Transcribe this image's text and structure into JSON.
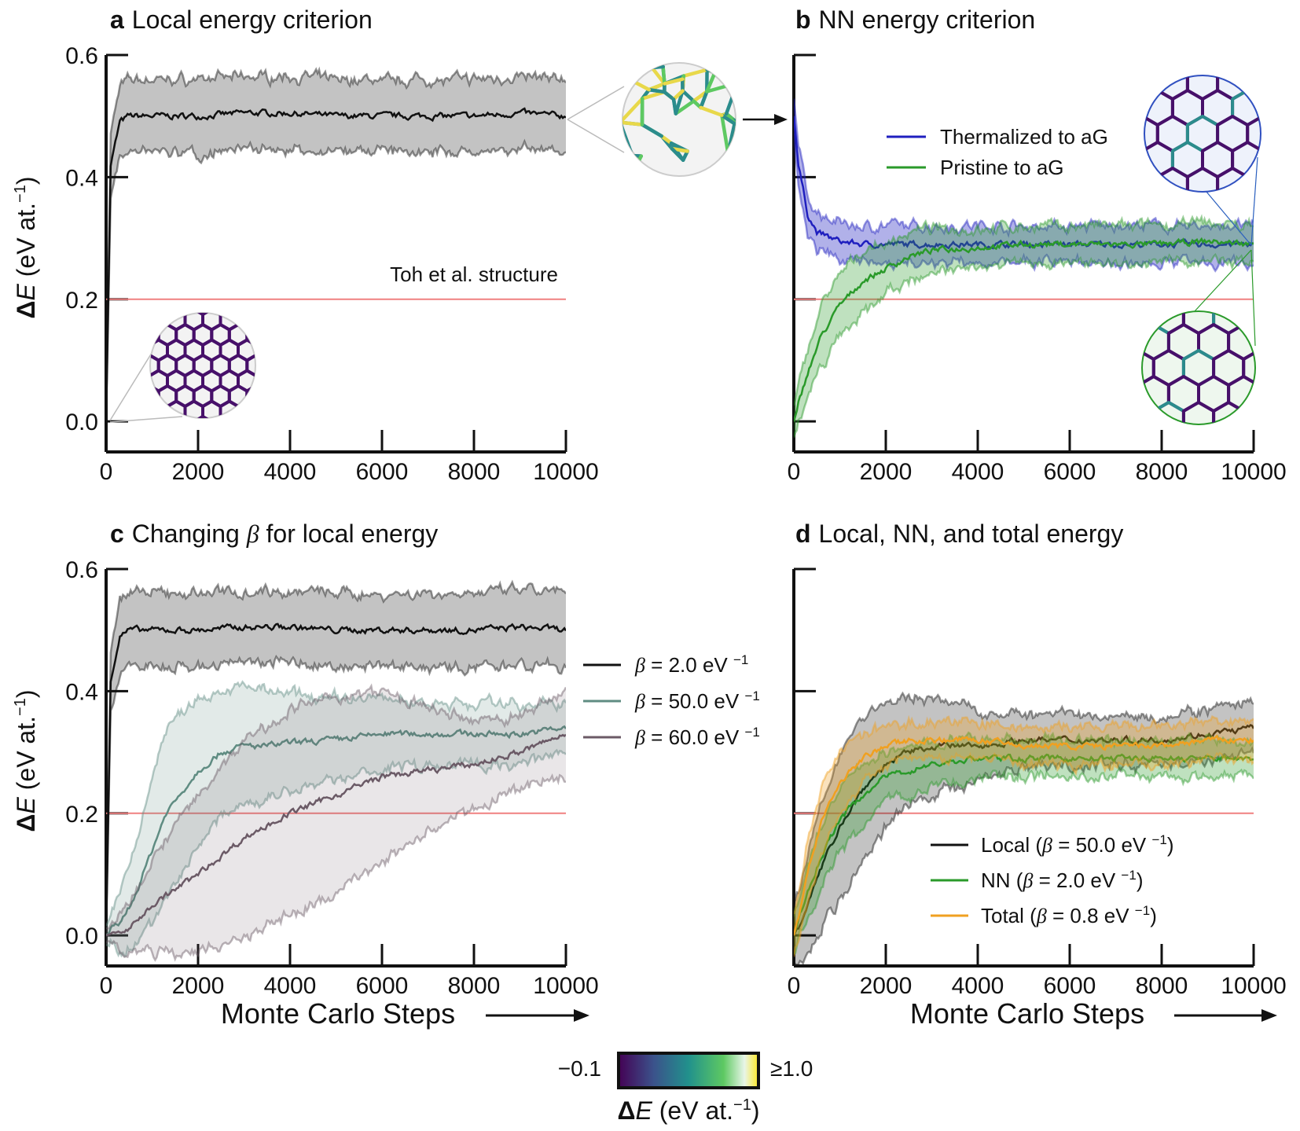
{
  "colors": {
    "local": "#111111",
    "thermalized": "#1f1fbf",
    "pristine": "#2a9a2a",
    "beta50": "#5f8c82",
    "beta60": "#6b5a66",
    "total": "#f0a020",
    "reference_line": "#f08080",
    "inset_purple": "#47106a",
    "inset_teal": "#2b8c8c",
    "inset_yellow": "#e8d84a"
  },
  "colorbar": {
    "min_label": "−0.1",
    "max_label": "≥1.0",
    "label_prefix": "Δ",
    "label_var": "E",
    "label_suffix": " (eV at.",
    "label_exp": "−1",
    "label_close": ")",
    "colormap": "viridis"
  },
  "panel_a": {
    "letter": "a",
    "title": "Local energy criterion",
    "annotation": "Toh et al. structure"
  },
  "panel_b": {
    "letter": "b",
    "title": "NN energy criterion"
  },
  "panel_c": {
    "letter": "c",
    "title_pre": "Changing ",
    "title_sym": "β",
    "title_post": " for local energy"
  },
  "panel_d": {
    "letter": "d",
    "title": "Local, NN, and total energy"
  },
  "axis_common": {
    "ylabel_delta": "Δ",
    "ylabel_var": "E",
    "ylabel_unit": " (eV at.",
    "ylabel_exp": "−1",
    "ylabel_close": ")",
    "xlabel": "Monte Carlo Steps"
  },
  "legend_b": [
    "Thermalized to aG",
    "Pristine to aG"
  ],
  "legend_c": [
    {
      "sym": "β",
      "text": " = 2.0 eV ",
      "exp": "−1"
    },
    {
      "sym": "β",
      "text": " = 50.0 eV ",
      "exp": "−1"
    },
    {
      "sym": "β",
      "text": " = 60.0 eV ",
      "exp": "−1"
    }
  ],
  "legend_d": [
    {
      "pre": "Local (",
      "sym": "β",
      "text": " = 50.0 eV ",
      "exp": "−1",
      "post": ")"
    },
    {
      "pre": "NN (",
      "sym": "β",
      "text": " = 2.0 eV ",
      "exp": "−1",
      "post": ")"
    },
    {
      "pre": "Total (",
      "sym": "β",
      "text": " = 0.8 eV ",
      "exp": "−1",
      "post": ")"
    }
  ],
  "chart_data": [
    {
      "panel": "a",
      "type": "line",
      "xlim": [
        0,
        10000
      ],
      "ylim": [
        -0.05,
        0.6
      ],
      "xticks": [
        0,
        2000,
        4000,
        6000,
        8000,
        10000
      ],
      "yticks": [
        "0.0",
        "0.2",
        "0.4",
        "0.6"
      ],
      "reference_line": 0.2,
      "series": [
        {
          "key": "local",
          "x": [
            0,
            100,
            300,
            500,
            1000,
            2000,
            3000,
            4000,
            5000,
            6000,
            7000,
            8000,
            9000,
            10000
          ],
          "mean": [
            0.0,
            0.42,
            0.49,
            0.5,
            0.5,
            0.5,
            0.505,
            0.505,
            0.5,
            0.5,
            0.5,
            0.5,
            0.505,
            0.5
          ],
          "std": [
            0.0,
            0.05,
            0.06,
            0.06,
            0.06,
            0.06,
            0.06,
            0.06,
            0.06,
            0.06,
            0.06,
            0.06,
            0.06,
            0.06
          ]
        }
      ]
    },
    {
      "panel": "b",
      "type": "line",
      "xlim": [
        0,
        10000
      ],
      "ylim": [
        -0.05,
        0.6
      ],
      "xticks": [
        0,
        2000,
        4000,
        6000,
        8000,
        10000
      ],
      "yticks": [
        "",
        "",
        "",
        ""
      ],
      "reference_line": 0.2,
      "series": [
        {
          "key": "thermalized",
          "name": "Thermalized to aG",
          "x": [
            0,
            100,
            300,
            500,
            800,
            1000,
            1500,
            2000,
            3000,
            4000,
            5000,
            6000,
            7000,
            8000,
            9000,
            10000
          ],
          "mean": [
            0.5,
            0.42,
            0.34,
            0.31,
            0.3,
            0.295,
            0.29,
            0.29,
            0.29,
            0.29,
            0.29,
            0.29,
            0.29,
            0.29,
            0.29,
            0.29
          ],
          "std": [
            0.03,
            0.03,
            0.03,
            0.03,
            0.03,
            0.03,
            0.03,
            0.03,
            0.03,
            0.03,
            0.03,
            0.03,
            0.03,
            0.03,
            0.03,
            0.03
          ]
        },
        {
          "key": "pristine",
          "name": "Pristine to aG",
          "x": [
            0,
            300,
            600,
            1000,
            1500,
            2000,
            2500,
            3000,
            4000,
            5000,
            6000,
            7000,
            8000,
            9000,
            10000
          ],
          "mean": [
            0.0,
            0.08,
            0.14,
            0.19,
            0.23,
            0.25,
            0.27,
            0.28,
            0.285,
            0.29,
            0.29,
            0.29,
            0.29,
            0.295,
            0.29
          ],
          "std": [
            0.03,
            0.04,
            0.05,
            0.05,
            0.05,
            0.04,
            0.04,
            0.035,
            0.03,
            0.03,
            0.03,
            0.03,
            0.03,
            0.03,
            0.03
          ]
        }
      ]
    },
    {
      "panel": "c",
      "type": "line",
      "xlim": [
        0,
        10000
      ],
      "ylim": [
        -0.05,
        0.6
      ],
      "xticks": [
        0,
        2000,
        4000,
        6000,
        8000,
        10000
      ],
      "yticks": [
        "0.0",
        "0.2",
        "0.4",
        "0.6"
      ],
      "reference_line": 0.2,
      "series": [
        {
          "key": "local",
          "name": "β = 2.0 eV −1",
          "x": [
            0,
            100,
            300,
            500,
            1000,
            2000,
            3000,
            4000,
            5000,
            6000,
            7000,
            8000,
            9000,
            10000
          ],
          "mean": [
            0.0,
            0.42,
            0.49,
            0.5,
            0.5,
            0.5,
            0.505,
            0.505,
            0.5,
            0.5,
            0.5,
            0.5,
            0.505,
            0.5
          ],
          "std": [
            0.0,
            0.05,
            0.06,
            0.06,
            0.06,
            0.06,
            0.06,
            0.06,
            0.06,
            0.06,
            0.06,
            0.06,
            0.06,
            0.06
          ]
        },
        {
          "key": "beta50",
          "name": "β = 50.0 eV −1",
          "x": [
            0,
            300,
            600,
            1000,
            1300,
            1700,
            2000,
            2500,
            3000,
            3500,
            4000,
            5000,
            6000,
            7000,
            8000,
            9000,
            10000
          ],
          "mean": [
            0.0,
            0.02,
            0.06,
            0.14,
            0.2,
            0.24,
            0.27,
            0.3,
            0.31,
            0.31,
            0.315,
            0.32,
            0.33,
            0.33,
            0.33,
            0.33,
            0.34
          ],
          "std": [
            0.01,
            0.05,
            0.08,
            0.12,
            0.14,
            0.13,
            0.12,
            0.1,
            0.1,
            0.09,
            0.08,
            0.07,
            0.06,
            0.05,
            0.05,
            0.05,
            0.04
          ]
        },
        {
          "key": "beta60",
          "name": "β = 60.0 eV −1",
          "x": [
            0,
            500,
            1000,
            2000,
            3000,
            4000,
            5000,
            6000,
            7000,
            8000,
            9000,
            10000
          ],
          "mean": [
            0.0,
            0.01,
            0.05,
            0.1,
            0.16,
            0.2,
            0.23,
            0.26,
            0.27,
            0.28,
            0.3,
            0.33
          ],
          "std": [
            0.01,
            0.04,
            0.08,
            0.13,
            0.16,
            0.17,
            0.16,
            0.14,
            0.1,
            0.07,
            0.06,
            0.07
          ]
        }
      ]
    },
    {
      "panel": "d",
      "type": "line",
      "xlim": [
        0,
        10000
      ],
      "ylim": [
        -0.05,
        0.6
      ],
      "xticks": [
        0,
        2000,
        4000,
        6000,
        8000,
        10000
      ],
      "yticks": [
        "",
        "",
        "",
        ""
      ],
      "reference_line": 0.2,
      "series": [
        {
          "key": "local",
          "name": "Local (β = 50.0 eV −1)",
          "x": [
            0,
            300,
            600,
            1000,
            1500,
            2000,
            2500,
            3000,
            4000,
            5000,
            6000,
            7000,
            8000,
            9000,
            10000
          ],
          "mean": [
            0.0,
            0.05,
            0.11,
            0.18,
            0.24,
            0.28,
            0.3,
            0.31,
            0.31,
            0.32,
            0.32,
            0.32,
            0.32,
            0.33,
            0.34
          ],
          "std": [
            0.05,
            0.08,
            0.1,
            0.12,
            0.12,
            0.1,
            0.09,
            0.08,
            0.06,
            0.04,
            0.04,
            0.04,
            0.04,
            0.04,
            0.04
          ]
        },
        {
          "key": "pristine",
          "name": "NN (β = 2.0 eV −1)",
          "x": [
            0,
            300,
            600,
            1000,
            1500,
            2000,
            2500,
            3000,
            4000,
            5000,
            6000,
            7000,
            8000,
            9000,
            10000
          ],
          "mean": [
            0.0,
            0.07,
            0.13,
            0.19,
            0.23,
            0.26,
            0.27,
            0.28,
            0.29,
            0.29,
            0.29,
            0.29,
            0.29,
            0.29,
            0.29
          ],
          "std": [
            0.03,
            0.04,
            0.05,
            0.05,
            0.05,
            0.04,
            0.04,
            0.035,
            0.03,
            0.03,
            0.03,
            0.03,
            0.03,
            0.03,
            0.03
          ]
        },
        {
          "key": "total",
          "name": "Total (β = 0.8 eV −1)",
          "x": [
            0,
            300,
            600,
            1000,
            1500,
            2000,
            2500,
            3000,
            4000,
            5000,
            6000,
            7000,
            8000,
            9000,
            10000
          ],
          "mean": [
            0.0,
            0.1,
            0.19,
            0.25,
            0.29,
            0.31,
            0.32,
            0.32,
            0.32,
            0.31,
            0.31,
            0.31,
            0.31,
            0.32,
            0.32
          ],
          "std": [
            0.03,
            0.05,
            0.06,
            0.05,
            0.04,
            0.03,
            0.03,
            0.03,
            0.03,
            0.03,
            0.03,
            0.03,
            0.03,
            0.03,
            0.03
          ]
        }
      ]
    }
  ]
}
